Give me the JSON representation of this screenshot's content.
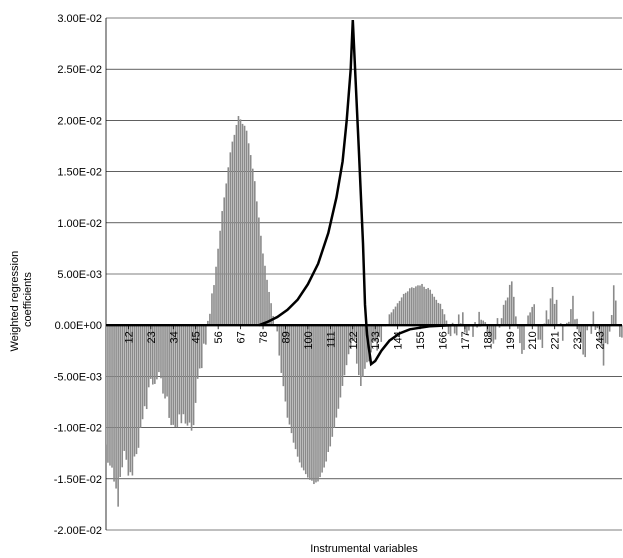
{
  "chart_data": {
    "type": "bar",
    "title": "",
    "xlabel": "Instrumental variables",
    "ylabel_lines": [
      "Weighted regression",
      "coefficients"
    ],
    "ylim": [
      -0.02,
      0.03
    ],
    "yticks": [
      "3.00E-02",
      "2.50E-02",
      "2.00E-02",
      "1.50E-02",
      "1.00E-02",
      "5.00E-03",
      "0.00E+00",
      "-5.00E-03",
      "-1.00E-02",
      "-1.50E-02",
      "-2.00E-02"
    ],
    "ytick_values": [
      0.03,
      0.025,
      0.02,
      0.015,
      0.01,
      0.005,
      0,
      -0.005,
      -0.01,
      -0.015,
      -0.02
    ],
    "xrange": [
      1,
      254
    ],
    "xtick_labels": [
      {
        "x": 12,
        "label": "12"
      },
      {
        "x": 23,
        "label": "23"
      },
      {
        "x": 34,
        "label": "34"
      },
      {
        "x": 45,
        "label": "45"
      },
      {
        "x": 56,
        "label": "56"
      },
      {
        "x": 67,
        "label": "67"
      },
      {
        "x": 78,
        "label": "78"
      },
      {
        "x": 89,
        "label": "89"
      },
      {
        "x": 100,
        "label": "100"
      },
      {
        "x": 111,
        "label": "111"
      },
      {
        "x": 122,
        "label": "122"
      },
      {
        "x": 133,
        "label": "133"
      },
      {
        "x": 144,
        "label": "144"
      },
      {
        "x": 155,
        "label": "155"
      },
      {
        "x": 166,
        "label": "166"
      },
      {
        "x": 177,
        "label": "177"
      },
      {
        "x": 188,
        "label": "188"
      },
      {
        "x": 199,
        "label": "199"
      },
      {
        "x": 210,
        "label": "210"
      },
      {
        "x": 221,
        "label": "221"
      },
      {
        "x": 232,
        "label": "232"
      },
      {
        "x": 243,
        "label": "243"
      }
    ],
    "grid": "horizontal",
    "series": [
      {
        "kind": "bars",
        "color": "#8a8a8a",
        "profile": [
          [
            1,
            -0.012
          ],
          [
            4,
            -0.015
          ],
          [
            7,
            -0.017
          ],
          [
            10,
            -0.013
          ],
          [
            13,
            -0.015
          ],
          [
            16,
            -0.012
          ],
          [
            19,
            -0.01
          ],
          [
            22,
            -0.006
          ],
          [
            26,
            -0.005
          ],
          [
            30,
            -0.007
          ],
          [
            33,
            -0.009
          ],
          [
            36,
            -0.01
          ],
          [
            40,
            -0.009
          ],
          [
            43,
            -0.011
          ],
          [
            46,
            -0.006
          ],
          [
            49,
            -0.002
          ],
          [
            51,
            0.0
          ],
          [
            54,
            0.004
          ],
          [
            58,
            0.011
          ],
          [
            62,
            0.017
          ],
          [
            66,
            0.0205
          ],
          [
            70,
            0.019
          ],
          [
            74,
            0.014
          ],
          [
            78,
            0.007
          ],
          [
            82,
            0.002
          ],
          [
            84,
            0.0
          ],
          [
            86,
            -0.003
          ],
          [
            90,
            -0.009
          ],
          [
            95,
            -0.013
          ],
          [
            100,
            -0.015
          ],
          [
            104,
            -0.0155
          ],
          [
            108,
            -0.014
          ],
          [
            112,
            -0.011
          ],
          [
            116,
            -0.007
          ],
          [
            120,
            -0.003
          ],
          [
            123,
            -0.001
          ],
          [
            126,
            -0.006
          ],
          [
            129,
            -0.004
          ],
          [
            133,
            -0.002
          ],
          [
            136,
            -0.001
          ],
          [
            140,
            0.001
          ],
          [
            145,
            0.0025
          ],
          [
            150,
            0.0035
          ],
          [
            155,
            0.004
          ],
          [
            160,
            0.0035
          ],
          [
            165,
            0.002
          ],
          [
            168,
            0.0005
          ],
          [
            170,
            -0.001
          ],
          [
            175,
            0.0005
          ],
          [
            180,
            -0.001
          ],
          [
            185,
            0.001
          ],
          [
            190,
            -0.002
          ],
          [
            195,
            0.0015
          ],
          [
            200,
            0.004
          ],
          [
            205,
            -0.003
          ],
          [
            210,
            0.002
          ],
          [
            215,
            -0.002
          ],
          [
            220,
            0.004
          ],
          [
            225,
            -0.002
          ],
          [
            230,
            0.002
          ],
          [
            235,
            -0.003
          ],
          [
            240,
            0.001
          ],
          [
            245,
            -0.004
          ],
          [
            250,
            0.003
          ],
          [
            254,
            -0.002
          ]
        ],
        "noise": 0.0011
      },
      {
        "kind": "line",
        "color": "#000000",
        "points": [
          [
            76,
            0.0
          ],
          [
            80,
            0.0003
          ],
          [
            85,
            0.0008
          ],
          [
            90,
            0.0015
          ],
          [
            95,
            0.0025
          ],
          [
            100,
            0.004
          ],
          [
            105,
            0.006
          ],
          [
            110,
            0.009
          ],
          [
            114,
            0.0125
          ],
          [
            117,
            0.016
          ],
          [
            119,
            0.02
          ],
          [
            121,
            0.025
          ],
          [
            122,
            0.0298
          ],
          [
            125,
            0.017
          ],
          [
            127,
            0.008
          ],
          [
            128,
            0.002
          ],
          [
            129,
            -0.001
          ],
          [
            131,
            -0.0038
          ],
          [
            133,
            -0.0035
          ],
          [
            136,
            -0.0025
          ],
          [
            140,
            -0.0015
          ],
          [
            145,
            -0.0008
          ],
          [
            150,
            -0.0004
          ],
          [
            160,
            -0.0001
          ],
          [
            170,
            0.0
          ],
          [
            185,
            0.0
          ]
        ]
      }
    ]
  }
}
